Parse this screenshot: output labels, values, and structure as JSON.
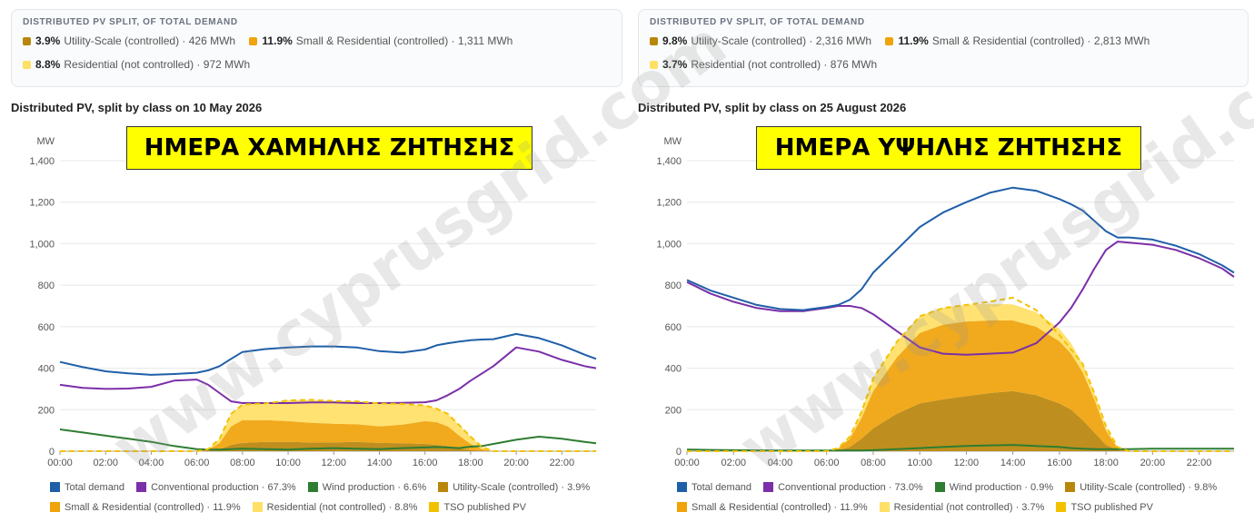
{
  "panels": [
    {
      "summary": {
        "title": "DISTRIBUTED PV SPLIT, OF TOTAL DEMAND",
        "rows": [
          [
            {
              "pct": "3.9%",
              "label": "Utility-Scale (controlled) · 426 MWh",
              "color": "#b8860b"
            },
            {
              "pct": "11.9%",
              "label": "Small & Residential (controlled) · 1,311 MWh",
              "color": "#f0a30a"
            }
          ],
          [
            {
              "pct": "8.8%",
              "label": "Residential (not controlled) · 972 MWh",
              "color": "#ffe066"
            }
          ]
        ]
      },
      "chart_title": "Distributed PV, split by class on 10 May 2026",
      "banner": "ΗΜΕΡΑ ΧΑΜΗΛΗΣ ΖΗΤΗΣΗΣ",
      "legend": [
        [
          {
            "label": "Total demand",
            "color": "#1f5fa8"
          },
          {
            "label": "Conventional production · 67.3%",
            "color": "#7b2fa8"
          },
          {
            "label": "Wind production · 6.6%",
            "color": "#2e7d32"
          },
          {
            "label": "Utility-Scale (controlled) · 3.9%",
            "color": "#b8860b"
          }
        ],
        [
          {
            "label": "Small & Residential (controlled) · 11.9%",
            "color": "#f0a30a"
          },
          {
            "label": "Residential (not controlled) · 8.8%",
            "color": "#ffe066"
          },
          {
            "label": "TSO published PV",
            "color": "#f2c200"
          }
        ]
      ]
    },
    {
      "summary": {
        "title": "DISTRIBUTED PV SPLIT, OF TOTAL DEMAND",
        "rows": [
          [
            {
              "pct": "9.8%",
              "label": "Utility-Scale (controlled) · 2,316 MWh",
              "color": "#b8860b"
            },
            {
              "pct": "11.9%",
              "label": "Small & Residential (controlled) · 2,813 MWh",
              "color": "#f0a30a"
            }
          ],
          [
            {
              "pct": "3.7%",
              "label": "Residential (not controlled) · 876 MWh",
              "color": "#ffe066"
            }
          ]
        ]
      },
      "chart_title": "Distributed PV, split by class on 25 August 2026",
      "banner": "ΗΜΕΡΑ ΥΨΗΛΗΣ ΖΗΤΗΣΗΣ",
      "legend": [
        [
          {
            "label": "Total demand",
            "color": "#1f5fa8"
          },
          {
            "label": "Conventional production · 73.0%",
            "color": "#7b2fa8"
          },
          {
            "label": "Wind production · 0.9%",
            "color": "#2e7d32"
          },
          {
            "label": "Utility-Scale (controlled) · 9.8%",
            "color": "#b8860b"
          }
        ],
        [
          {
            "label": "Small & Residential (controlled) · 11.9%",
            "color": "#f0a30a"
          },
          {
            "label": "Residential (not controlled) · 3.7%",
            "color": "#ffe066"
          },
          {
            "label": "TSO published PV",
            "color": "#f2c200"
          }
        ]
      ]
    }
  ],
  "watermark": "www.cyprusgrid.com",
  "chart_data": [
    {
      "type": "area",
      "title": "Distributed PV, split by class on 10 May 2026",
      "ylabel": "MW",
      "ylim": [
        0,
        1400
      ],
      "yticks": [
        "0",
        "200",
        "400",
        "600",
        "800",
        "1,000",
        "1,200",
        "1,400"
      ],
      "xlim": [
        0,
        23.5
      ],
      "xticks": [
        "00:00",
        "02:00",
        "04:00",
        "06:00",
        "08:00",
        "10:00",
        "12:00",
        "14:00",
        "16:00",
        "18:00",
        "20:00",
        "22:00"
      ],
      "grid": true,
      "x": [
        0,
        1,
        2,
        3,
        4,
        5,
        6,
        6.5,
        7,
        7.5,
        8,
        9,
        10,
        11,
        12,
        13,
        14,
        15,
        16,
        16.5,
        17,
        17.5,
        18,
        18.5,
        19,
        20,
        21,
        22,
        23,
        23.5
      ],
      "series": [
        {
          "name": "Total demand",
          "kind": "line",
          "color": "#1f5fa8",
          "values": [
            430,
            405,
            385,
            375,
            368,
            372,
            378,
            390,
            410,
            445,
            478,
            492,
            500,
            505,
            505,
            500,
            482,
            475,
            490,
            510,
            520,
            528,
            535,
            538,
            540,
            565,
            545,
            510,
            465,
            445
          ]
        },
        {
          "name": "Conventional production",
          "kind": "line",
          "color": "#7b2fa8",
          "values": [
            320,
            305,
            300,
            302,
            310,
            340,
            345,
            320,
            280,
            240,
            232,
            232,
            232,
            235,
            235,
            232,
            232,
            233,
            236,
            245,
            270,
            300,
            340,
            375,
            410,
            500,
            480,
            440,
            410,
            400
          ]
        },
        {
          "name": "Wind production",
          "kind": "line",
          "color": "#2e7d32",
          "values": [
            105,
            90,
            75,
            60,
            45,
            25,
            10,
            8,
            8,
            10,
            12,
            10,
            8,
            12,
            15,
            12,
            10,
            15,
            18,
            20,
            18,
            15,
            22,
            25,
            35,
            55,
            70,
            60,
            45,
            38
          ]
        },
        {
          "name": "Utility-Scale (controlled)",
          "kind": "area",
          "color": "#b8860b",
          "values": [
            0,
            0,
            0,
            0,
            0,
            0,
            0,
            2,
            10,
            30,
            40,
            45,
            45,
            42,
            42,
            45,
            40,
            38,
            35,
            30,
            25,
            15,
            5,
            2,
            0,
            0,
            0,
            0,
            0,
            0
          ]
        },
        {
          "name": "Small & Residential (controlled)",
          "kind": "area",
          "color": "#f0a30a",
          "values": [
            0,
            0,
            0,
            0,
            0,
            0,
            0,
            5,
            30,
            90,
            110,
            105,
            100,
            95,
            90,
            85,
            80,
            90,
            110,
            110,
            95,
            60,
            30,
            8,
            0,
            0,
            0,
            0,
            0,
            0
          ]
        },
        {
          "name": "Residential (not controlled)",
          "kind": "area",
          "color": "#ffe066",
          "values": [
            0,
            0,
            0,
            0,
            0,
            0,
            0,
            3,
            20,
            60,
            75,
            80,
            100,
            110,
            110,
            110,
            110,
            100,
            75,
            65,
            60,
            50,
            35,
            10,
            0,
            0,
            0,
            0,
            0,
            0
          ]
        },
        {
          "name": "TSO published PV",
          "kind": "dashed",
          "color": "#f2c200",
          "values": [
            0,
            0,
            0,
            0,
            0,
            0,
            0,
            10,
            60,
            180,
            225,
            230,
            245,
            247,
            242,
            240,
            230,
            228,
            220,
            205,
            180,
            125,
            70,
            20,
            0,
            0,
            0,
            0,
            0,
            0
          ]
        }
      ]
    },
    {
      "type": "area",
      "title": "Distributed PV, split by class on 25 August 2026",
      "ylabel": "MW",
      "ylim": [
        0,
        1400
      ],
      "yticks": [
        "0",
        "200",
        "400",
        "600",
        "800",
        "1,000",
        "1,200",
        "1,400"
      ],
      "xlim": [
        0,
        23.5
      ],
      "xticks": [
        "00:00",
        "02:00",
        "04:00",
        "06:00",
        "08:00",
        "10:00",
        "12:00",
        "14:00",
        "16:00",
        "18:00",
        "20:00",
        "22:00"
      ],
      "grid": true,
      "x": [
        0,
        1,
        2,
        3,
        4,
        5,
        6,
        6.5,
        7,
        7.5,
        8,
        9,
        10,
        11,
        12,
        13,
        14,
        15,
        16,
        16.5,
        17,
        17.5,
        18,
        18.5,
        19,
        20,
        21,
        22,
        23,
        23.5
      ],
      "series": [
        {
          "name": "Total demand",
          "kind": "line",
          "color": "#1f5fa8",
          "values": [
            825,
            775,
            740,
            705,
            685,
            680,
            695,
            705,
            730,
            780,
            860,
            970,
            1080,
            1150,
            1200,
            1245,
            1270,
            1255,
            1215,
            1190,
            1160,
            1110,
            1060,
            1030,
            1030,
            1020,
            990,
            950,
            895,
            860
          ]
        },
        {
          "name": "Conventional production",
          "kind": "line",
          "color": "#7b2fa8",
          "values": [
            815,
            760,
            720,
            690,
            675,
            675,
            690,
            700,
            700,
            690,
            660,
            580,
            500,
            470,
            465,
            470,
            475,
            520,
            620,
            690,
            780,
            880,
            970,
            1010,
            1005,
            995,
            970,
            930,
            880,
            840
          ]
        },
        {
          "name": "Wind production",
          "kind": "line",
          "color": "#2e7d32",
          "values": [
            8,
            6,
            5,
            4,
            3,
            3,
            3,
            3,
            3,
            3,
            5,
            10,
            15,
            20,
            25,
            28,
            30,
            25,
            20,
            15,
            12,
            10,
            10,
            10,
            10,
            12,
            12,
            12,
            12,
            12
          ]
        },
        {
          "name": "Utility-Scale (controlled)",
          "kind": "area",
          "color": "#b8860b",
          "values": [
            0,
            0,
            0,
            0,
            0,
            0,
            0,
            5,
            20,
            60,
            110,
            180,
            230,
            250,
            265,
            280,
            290,
            270,
            230,
            200,
            150,
            90,
            30,
            5,
            0,
            0,
            0,
            0,
            0,
            0
          ]
        },
        {
          "name": "Small & Residential (controlled)",
          "kind": "area",
          "color": "#f0a30a",
          "values": [
            0,
            0,
            0,
            0,
            0,
            0,
            0,
            8,
            40,
            100,
            180,
            270,
            340,
            360,
            360,
            350,
            340,
            330,
            300,
            270,
            230,
            160,
            70,
            10,
            0,
            0,
            0,
            0,
            0,
            0
          ]
        },
        {
          "name": "Residential (not controlled)",
          "kind": "area",
          "color": "#ffe066",
          "values": [
            0,
            0,
            0,
            0,
            0,
            0,
            0,
            2,
            10,
            30,
            60,
            75,
            80,
            80,
            80,
            80,
            78,
            70,
            60,
            50,
            40,
            30,
            15,
            3,
            0,
            0,
            0,
            0,
            0,
            0
          ]
        },
        {
          "name": "TSO published PV",
          "kind": "dashed",
          "color": "#f2c200",
          "values": [
            0,
            0,
            0,
            0,
            0,
            0,
            0,
            15,
            70,
            190,
            350,
            525,
            650,
            690,
            705,
            720,
            740,
            680,
            560,
            490,
            420,
            280,
            120,
            20,
            0,
            0,
            0,
            0,
            0,
            0
          ]
        }
      ]
    }
  ]
}
